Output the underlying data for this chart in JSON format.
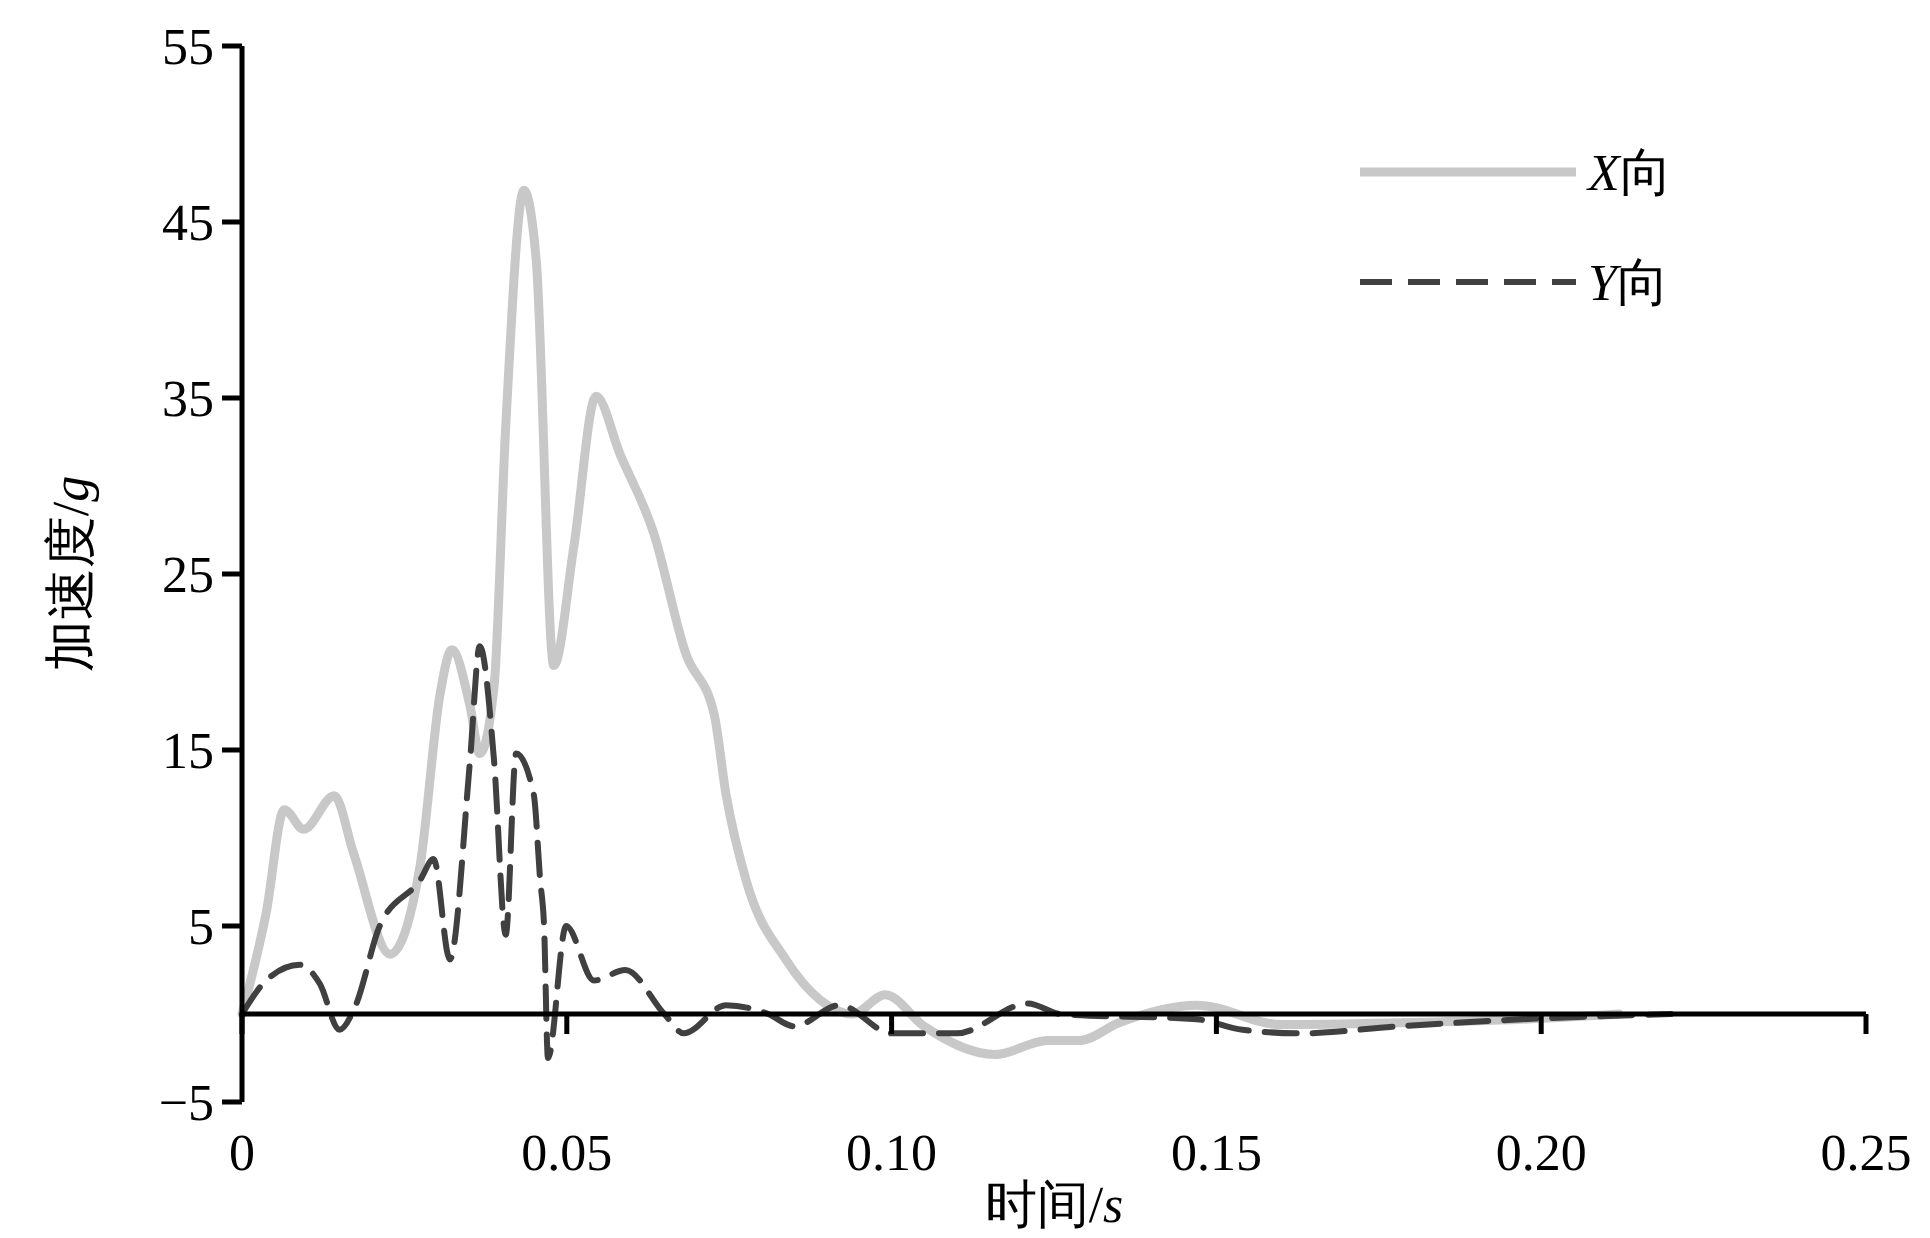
{
  "chart_data": {
    "type": "line",
    "xlabel": "时间/s",
    "ylabel": "加速度/g",
    "xlim": [
      0,
      0.25
    ],
    "ylim": [
      -5,
      55
    ],
    "xticks": [
      0,
      0.05,
      {
        "value": 0.1,
        "label": "0.10"
      },
      0.15,
      {
        "value": 0.2,
        "label": "0.20"
      },
      0.25
    ],
    "yticks": [
      {
        "value": -5,
        "label": "−5"
      },
      5,
      15,
      25,
      35,
      45,
      55
    ],
    "grid": false,
    "legend": "top right",
    "series": [
      {
        "name": "X向",
        "color": "#c8c8c8",
        "line_style": "solid",
        "x": [
          0,
          0.0037,
          0.0065,
          0.0095,
          0.0142,
          0.0172,
          0.0228,
          0.0274,
          0.0305,
          0.0323,
          0.0351,
          0.0366,
          0.0388,
          0.0406,
          0.0434,
          0.0453,
          0.048,
          0.0511,
          0.0545,
          0.0582,
          0.0634,
          0.0683,
          0.0727,
          0.0745,
          0.0776,
          0.0837,
          0.089,
          0.094,
          0.099,
          0.105,
          0.116,
          0.124,
          0.129,
          0.135,
          0.147,
          0.16,
          0.178,
          0.197,
          0.212
        ],
        "values": [
          0,
          5.7,
          11.6,
          10.5,
          12.4,
          9.1,
          3.4,
          8.4,
          18.2,
          20.7,
          17.5,
          14.8,
          18.6,
          33.4,
          46.8,
          42.8,
          19.8,
          26.6,
          35.1,
          31.8,
          27.3,
          20.5,
          17,
          12.5,
          7.6,
          3.1,
          0.8,
          0,
          1.1,
          -0.7,
          -2.3,
          -1.5,
          -1.5,
          -0.5,
          0.5,
          -0.6,
          -0.5,
          -0.3,
          0
        ]
      },
      {
        "name": "Y向",
        "color": "#404040",
        "line_style": "dashed",
        "x": [
          0,
          0.0037,
          0.0089,
          0.012,
          0.015,
          0.0175,
          0.0212,
          0.0274,
          0.0295,
          0.032,
          0.0351,
          0.0366,
          0.0388,
          0.0406,
          0.0422,
          0.0449,
          0.0459,
          0.0465,
          0.0471,
          0.0499,
          0.0542,
          0.059,
          0.065,
          0.068,
          0.0745,
          0.081,
          0.085,
          0.092,
          0.1,
          0.11,
          0.121,
          0.126,
          0.147,
          0.154,
          0.163,
          0.178,
          0.197,
          0.22
        ],
        "values": [
          0,
          1.9,
          2.8,
          1.7,
          -0.9,
          0.5,
          5,
          7.6,
          8.8,
          3.1,
          14.4,
          20.9,
          14.4,
          4.5,
          14.8,
          12.5,
          7.6,
          5,
          -2.5,
          5,
          1.9,
          2.5,
          0,
          -1.1,
          0.5,
          0,
          -0.7,
          0.5,
          -1.1,
          -1.1,
          0.6,
          0,
          -0.3,
          -0.9,
          -1.1,
          -0.7,
          -0.3,
          0
        ]
      }
    ]
  }
}
